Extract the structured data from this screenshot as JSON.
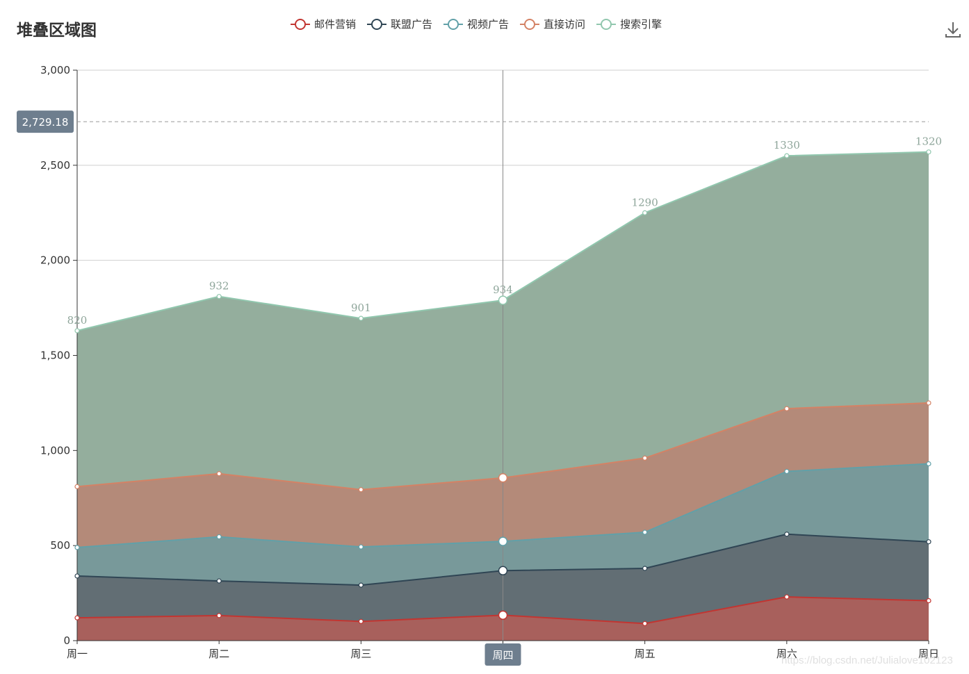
{
  "title": "堆叠区域图",
  "watermark": "https://blog.csdn.net/Julialove102123",
  "toolbox": {
    "download_icon": "download-icon"
  },
  "tooltip": {
    "y_value": "2,729.18",
    "x_category": "周四"
  },
  "chart_data": {
    "type": "area",
    "stacked": true,
    "title": "堆叠区域图",
    "categories": [
      "周一",
      "周二",
      "周三",
      "周四",
      "周五",
      "周六",
      "周日"
    ],
    "ylim": [
      0,
      3000
    ],
    "yticks": [
      0,
      500,
      1000,
      1500,
      2000,
      2500,
      3000
    ],
    "ytick_labels": [
      "0",
      "500",
      "1,000",
      "1,500",
      "2,000",
      "2,500",
      "3,000"
    ],
    "grid": true,
    "legend_position": "top-center",
    "series": [
      {
        "name": "邮件营销",
        "color": "#c23531",
        "fill": "#a8605c",
        "values": [
          120,
          132,
          101,
          134,
          90,
          230,
          210
        ]
      },
      {
        "name": "联盟广告",
        "color": "#2f4554",
        "fill": "#626e74",
        "values": [
          220,
          182,
          191,
          234,
          290,
          330,
          310
        ]
      },
      {
        "name": "视频广告",
        "color": "#61a0a8",
        "fill": "#78999a",
        "values": [
          150,
          232,
          201,
          154,
          190,
          330,
          410
        ]
      },
      {
        "name": "直接访问",
        "color": "#d48265",
        "fill": "#b48a79",
        "values": [
          320,
          332,
          301,
          334,
          390,
          330,
          320
        ]
      },
      {
        "name": "搜索引擎",
        "color": "#91c7ae",
        "fill": "#94ae9d",
        "values": [
          820,
          932,
          901,
          934,
          1290,
          1330,
          1320
        ],
        "labels": [
          "820",
          "932",
          "901",
          "934",
          "1290",
          "1330",
          "1320"
        ]
      }
    ]
  }
}
